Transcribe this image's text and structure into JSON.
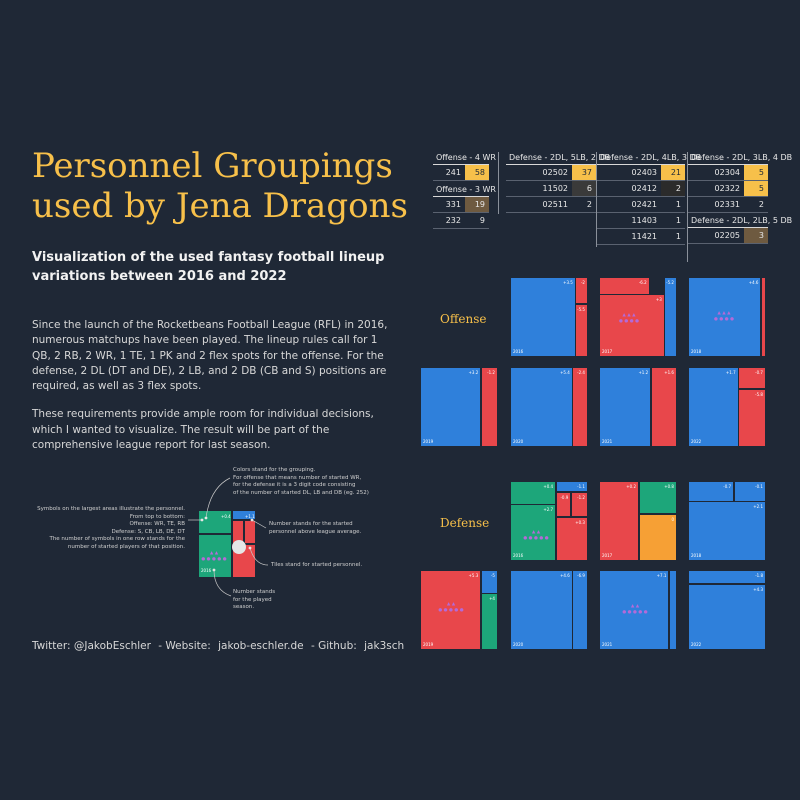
{
  "title_lines": [
    "Personnel Groupings",
    "used by Jena Dragons"
  ],
  "subtitle": "Visualization of the used fantasy football lineup variations between 2016 and 2022",
  "body_paragraphs": [
    "Since the launch of the Rocketbeans Football League (RFL) in 2016, numerous matchups have been played. The lineup rules call for 1 QB, 2 RB, 2 WR, 1 TE, 1 PK and 2 flex spots for the offense. For the defense, 2 DL (DT and DE), 2 LB, and 2 DB (CB and S) positions are required, as well as 3 flex spots.",
    "These requirements provide ample room for individual decisions, which I wanted to visualize. The result will be part of the comprehensive league report for last season."
  ],
  "footer": {
    "twitter": "Twitter: @JakobEschler",
    "sep1": " - Website:  ",
    "website": "jakob-eschler.de",
    "sep2": " - Github:  ",
    "github": "jak3sch"
  },
  "colors": {
    "background": "#1f2836",
    "accent": "#f7c04a",
    "blue": "#2f80db",
    "red": "#e8474b",
    "green": "#1da67a",
    "orange": "#f6a035",
    "yellow": "#f7c04a",
    "brown": "#6e5a40"
  },
  "tables": [
    {
      "id": "off4",
      "header": "Offense - 4 WR",
      "rows": [
        {
          "code": "241",
          "count": "58",
          "color": "#f7c04a"
        }
      ]
    },
    {
      "id": "off3",
      "header": "Offense - 3 WR",
      "rows": [
        {
          "code": "331",
          "count": "19",
          "color": "#6e5a40"
        },
        {
          "code": "232",
          "count": "9",
          "color": ""
        }
      ]
    },
    {
      "id": "d5lb",
      "header": "Defense - 2DL, 5LB, 2 DB",
      "rows": [
        {
          "code": "02502",
          "count": "37",
          "color": "#f7c04a"
        },
        {
          "code": "11502",
          "count": "6",
          "color": "#3a3a3a"
        },
        {
          "code": "02511",
          "count": "2",
          "color": ""
        }
      ]
    },
    {
      "id": "d4lb",
      "header": "Defense - 2DL, 4LB, 3 DB",
      "rows": [
        {
          "code": "02403",
          "count": "21",
          "color": "#f7c04a"
        },
        {
          "code": "02412",
          "count": "2",
          "color": "#2b2b2b"
        },
        {
          "code": "02421",
          "count": "1",
          "color": ""
        },
        {
          "code": "11403",
          "count": "1",
          "color": ""
        },
        {
          "code": "11421",
          "count": "1",
          "color": ""
        }
      ]
    },
    {
      "id": "d3lb",
      "header": "Defense - 2DL, 3LB, 4 DB",
      "rows": [
        {
          "code": "02304",
          "count": "5",
          "color": "#f7c04a"
        },
        {
          "code": "02322",
          "count": "5",
          "color": "#f7c04a"
        },
        {
          "code": "02331",
          "count": "2",
          "color": ""
        }
      ]
    },
    {
      "id": "d2lb",
      "header": "Defense - 2DL, 2LB, 5 DB",
      "rows": [
        {
          "code": "02205",
          "count": "3",
          "color": "#6e5a40"
        }
      ]
    }
  ],
  "panel_labels": {
    "offense": "Offense",
    "defense": "Defense"
  },
  "chart_data": {
    "type": "treemap",
    "offense": [
      {
        "year": "2016",
        "tiles": [
          {
            "color": "#2f80db",
            "label": "+3.5",
            "share": 0.82
          },
          {
            "color": "#e8474b",
            "label": "-2",
            "share": 0.1
          },
          {
            "color": "#e8474b",
            "label": "-5.5",
            "share": 0.08
          }
        ]
      },
      {
        "year": "2017",
        "tiles": [
          {
            "color": "#e8474b",
            "label": "-6.2",
            "share": 0.2
          },
          {
            "color": "#e8474b",
            "label": "+3",
            "share": 0.6
          },
          {
            "color": "#2f80db",
            "label": "-5.2",
            "share": 0.2
          }
        ]
      },
      {
        "year": "2018",
        "tiles": [
          {
            "color": "#2f80db",
            "label": "+4.6",
            "share": 0.93
          },
          {
            "color": "#e8474b",
            "label": "",
            "share": 0.07
          }
        ]
      },
      {
        "year": "2019",
        "tiles": [
          {
            "color": "#2f80db",
            "label": "+3.2",
            "share": 0.75
          },
          {
            "color": "#e8474b",
            "label": "-1.2",
            "share": 0.25
          }
        ]
      },
      {
        "year": "2020",
        "tiles": [
          {
            "color": "#2f80db",
            "label": "+5.4",
            "share": 0.8
          },
          {
            "color": "#e8474b",
            "label": "-2.4",
            "share": 0.2
          }
        ]
      },
      {
        "year": "2021",
        "tiles": [
          {
            "color": "#2f80db",
            "label": "+1.2",
            "share": 0.6
          },
          {
            "color": "#e8474b",
            "label": "+1.6",
            "share": 0.4
          }
        ]
      },
      {
        "year": "2022",
        "tiles": [
          {
            "color": "#2f80db",
            "label": "+1.7",
            "share": 0.6
          },
          {
            "color": "#e8474b",
            "label": "-0.7",
            "share": 0.2
          },
          {
            "color": "#e8474b",
            "label": "-5.8",
            "share": 0.2
          }
        ]
      }
    ],
    "defense": [
      {
        "year": "2016",
        "tiles": [
          {
            "color": "#1da67a",
            "label": "+0.4",
            "share": 0.3
          },
          {
            "color": "#2f80db",
            "label": "-1.1",
            "share": 0.1
          },
          {
            "color": "#1da67a",
            "label": "+2.7",
            "share": 0.2
          },
          {
            "color": "#e8474b",
            "label": "-0.9",
            "share": 0.1
          },
          {
            "color": "#e8474b",
            "label": "-1.2",
            "share": 0.1
          },
          {
            "color": "#e8474b",
            "label": "+0.3",
            "share": 0.2
          }
        ]
      },
      {
        "year": "2017",
        "tiles": [
          {
            "color": "#e8474b",
            "label": "+0.2",
            "share": 0.5
          },
          {
            "color": "#1da67a",
            "label": "+0.8",
            "share": 0.25
          },
          {
            "color": "#f6a035",
            "label": "0",
            "share": 0.25
          }
        ]
      },
      {
        "year": "2018",
        "tiles": [
          {
            "color": "#2f80db",
            "label": "-0.7",
            "share": 0.3
          },
          {
            "color": "#2f80db",
            "label": "-0.1",
            "share": 0.1
          },
          {
            "color": "#2f80db",
            "label": "+2.1",
            "share": 0.6
          }
        ]
      },
      {
        "year": "2019",
        "tiles": [
          {
            "color": "#e8474b",
            "label": "+5.3",
            "share": 0.78
          },
          {
            "color": "#2f80db",
            "label": "-5",
            "share": 0.08
          },
          {
            "color": "#1da67a",
            "label": "+4",
            "share": 0.14
          }
        ]
      },
      {
        "year": "2020",
        "tiles": [
          {
            "color": "#2f80db",
            "label": "+4.6",
            "share": 0.8
          },
          {
            "color": "#2f80db",
            "label": "-6.9",
            "share": 0.2
          }
        ]
      },
      {
        "year": "2021",
        "tiles": [
          {
            "color": "#2f80db",
            "label": "+7.1",
            "share": 0.9
          },
          {
            "color": "#2f80db",
            "label": "",
            "share": 0.1
          }
        ]
      },
      {
        "year": "2022",
        "tiles": [
          {
            "color": "#2f80db",
            "label": "-1.8",
            "share": 0.15
          },
          {
            "color": "#2f80db",
            "label": "+4.3",
            "share": 0.85
          }
        ]
      }
    ]
  },
  "legend": {
    "colors_note": "Colors stand for the grouping.\nFor offense that means number of started WR,\nfor the defense it is a 3 digit code consisting\nof the number of started DL, LB and DB (eg. 252)",
    "symbols_note": "Symbols on the largest areas illustrate the personnel.\nFrom top to bottom:\nOffense: WR, TE, RB\nDefense: S, CB, LB, DE, DT\nThe number of symbols in one row stands for the\nnumber of started players of that position.",
    "above_avg_note": "Number stands for the started\npersonnel above league average.",
    "tiles_note": "Tiles stand for started personnel.",
    "season_note": "Number stands\nfor the played\nseason.",
    "sample_year": "2016",
    "sample_label_a": "+0.4",
    "sample_label_b": "+1.1"
  }
}
